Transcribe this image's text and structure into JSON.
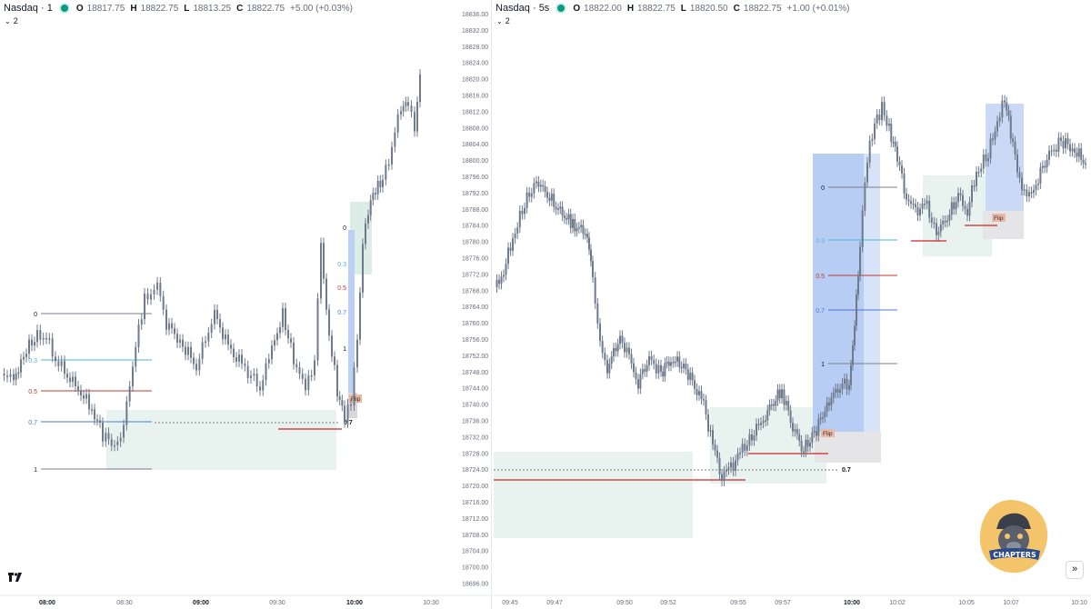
{
  "left": {
    "symbol": "Nasdaq · 1",
    "ohlc": [
      {
        "k": "O",
        "v": "18817.75"
      },
      {
        "k": "H",
        "v": "18822.75"
      },
      {
        "k": "L",
        "v": "18813.25"
      },
      {
        "k": "C",
        "v": "18822.75"
      }
    ],
    "change": "+5.00 (+0.03%)",
    "indicators_count": "2",
    "time_labels": [
      "08:00",
      "08:30",
      "09:00",
      "09:30",
      "10:00",
      "10:30"
    ],
    "time_bold": [
      true,
      false,
      true,
      false,
      true,
      false
    ],
    "fib_labels": [
      "0",
      "0.3",
      "0.5",
      "0.7",
      "1"
    ],
    "fib_labels_right": [
      "0",
      "0.3",
      "0.5",
      "0.7",
      "1"
    ],
    "flip_label": "Flip",
    "level_label": "0.7",
    "price_labels": [
      "18836.00",
      "18832.00",
      "18828.00",
      "18824.00",
      "18820.00",
      "18816.00",
      "18812.00",
      "18808.00",
      "18804.00",
      "18800.00",
      "18796.00",
      "18792.00",
      "18788.00",
      "18784.00",
      "18780.00",
      "18776.00",
      "18772.00",
      "18768.00",
      "18764.00",
      "18760.00",
      "18756.00",
      "18752.00",
      "18748.00",
      "18744.00",
      "18740.00",
      "18736.00",
      "18732.00",
      "18728.00",
      "18724.00",
      "18720.00",
      "18716.00",
      "18712.00",
      "18708.00",
      "18704.00",
      "18700.00",
      "18696.00"
    ]
  },
  "right": {
    "symbol": "Nasdaq · 5s",
    "ohlc": [
      {
        "k": "O",
        "v": "18822.00"
      },
      {
        "k": "H",
        "v": "18822.75"
      },
      {
        "k": "L",
        "v": "18820.50"
      },
      {
        "k": "C",
        "v": "18822.75"
      }
    ],
    "change": "+1.00 (+0.01%)",
    "indicators_count": "2",
    "time_labels": [
      "09:45",
      "09:47",
      "09:50",
      "09:52",
      "09:55",
      "09:57",
      "10:00",
      "10:02",
      "10:05",
      "10:07",
      "10:10"
    ],
    "time_bold": [
      false,
      false,
      false,
      false,
      false,
      false,
      true,
      false,
      false,
      false,
      false
    ],
    "fib_labels": [
      "0",
      "0.3",
      "0.5",
      "0.7",
      "1"
    ],
    "flip_labels": [
      "Flip",
      "Flip"
    ],
    "level_label": "0.7",
    "badge_text": "CHAPTERS"
  },
  "colors": {
    "candle": "#6f7a8c",
    "candle_blue": "#7b9fe0",
    "zone_green": "#e8f3ef",
    "zone_blue": "#bcd0f5",
    "zone_grey": "#e5e5e7",
    "red_line": "#c62828",
    "fib_cyan": "#4fb6d4",
    "fib_red": "#c0392b",
    "fib_blue": "#4a78d0",
    "fib_grey": "#7b7f8c",
    "flip_bg": "#e9b9a8",
    "grid": "#f2f3f5"
  },
  "icons": {
    "logo": "tradingview-logo-icon",
    "forward": "double-chevron-right-icon",
    "collapse": "chevron-down-icon"
  }
}
